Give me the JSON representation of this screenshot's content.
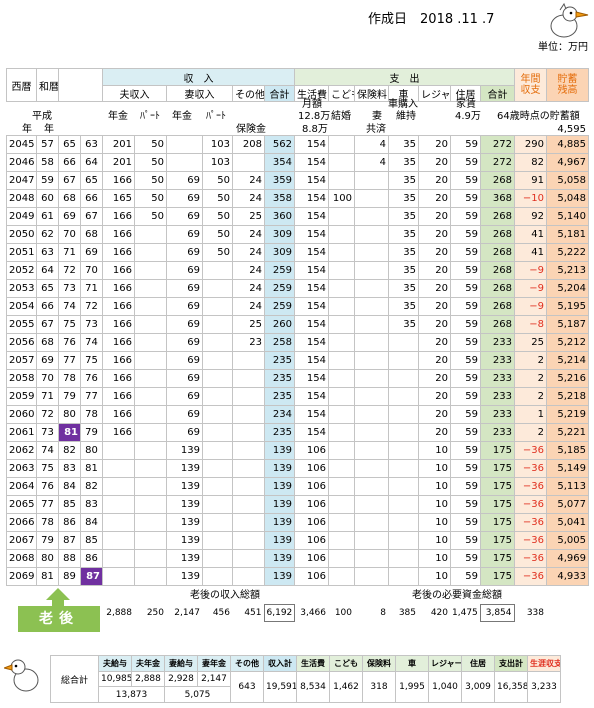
{
  "header": {
    "created_label": "作成日",
    "created_date": "2018 .11 .7",
    "unit": "単位：万円"
  },
  "table": {
    "head": {
      "western": "西暦",
      "japanese": "和暦",
      "income": "収　入",
      "husband_income": "夫収入",
      "wife_income": "妻収入",
      "other": "その他",
      "income_total": "合計",
      "expense": "支　出",
      "living": "生活費",
      "children": "こども",
      "insurance": "保険料",
      "car": "車",
      "leisure": "レジャー",
      "housing": "住居",
      "expense_total": "合計",
      "annual_balance": [
        "年間",
        "収支"
      ],
      "savings": [
        "貯蓄",
        "残高"
      ]
    },
    "notes": {
      "heisei": "平成",
      "year1": "年",
      "year2": "年",
      "pension1": "年金",
      "part1": "ﾊﾟｰﾄ",
      "pension2": "年金",
      "part2": "ﾊﾟｰﾄ",
      "insurance_payout": "保険金",
      "monthly": "月額",
      "living_h": "12.8万",
      "living_w": "8.8万",
      "marriage": "結婚",
      "wife": "妻",
      "mutual": "共済",
      "car_purchase": "車購入",
      "maintenance": "維持",
      "rent": "家賃",
      "rent_amount": "4.9万",
      "savings_at_64": "64歳時点の貯蓄額",
      "savings_at_64_value": "4,595"
    },
    "rows": [
      [
        2045,
        57,
        65,
        63,
        201,
        50,
        null,
        103,
        208,
        562,
        154,
        null,
        4,
        35,
        20,
        59,
        272,
        290,
        "4,885"
      ],
      [
        2046,
        58,
        66,
        64,
        201,
        50,
        null,
        103,
        null,
        354,
        154,
        null,
        4,
        35,
        20,
        59,
        272,
        82,
        "4,967"
      ],
      [
        2047,
        59,
        67,
        65,
        166,
        50,
        69,
        50,
        24,
        359,
        154,
        null,
        null,
        35,
        20,
        59,
        268,
        91,
        "5,058"
      ],
      [
        2048,
        60,
        68,
        66,
        165,
        50,
        69,
        50,
        24,
        358,
        154,
        100,
        null,
        35,
        20,
        59,
        368,
        "−10",
        "5,048"
      ],
      [
        2049,
        61,
        69,
        67,
        166,
        50,
        69,
        50,
        25,
        360,
        154,
        null,
        null,
        35,
        20,
        59,
        268,
        92,
        "5,140"
      ],
      [
        2050,
        62,
        70,
        68,
        166,
        null,
        69,
        50,
        24,
        309,
        154,
        null,
        null,
        35,
        20,
        59,
        268,
        41,
        "5,181"
      ],
      [
        2051,
        63,
        71,
        69,
        166,
        null,
        69,
        50,
        24,
        309,
        154,
        null,
        null,
        35,
        20,
        59,
        268,
        41,
        "5,222"
      ],
      [
        2052,
        64,
        72,
        70,
        166,
        null,
        69,
        null,
        24,
        259,
        154,
        null,
        null,
        35,
        20,
        59,
        268,
        "−9",
        "5,213"
      ],
      [
        2053,
        65,
        73,
        71,
        166,
        null,
        69,
        null,
        24,
        259,
        154,
        null,
        null,
        35,
        20,
        59,
        268,
        "−9",
        "5,204"
      ],
      [
        2054,
        66,
        74,
        72,
        166,
        null,
        69,
        null,
        24,
        259,
        154,
        null,
        null,
        35,
        20,
        59,
        268,
        "−9",
        "5,195"
      ],
      [
        2055,
        67,
        75,
        73,
        166,
        null,
        69,
        null,
        25,
        260,
        154,
        null,
        null,
        35,
        20,
        59,
        268,
        "−8",
        "5,187"
      ],
      [
        2056,
        68,
        76,
        74,
        166,
        null,
        69,
        null,
        23,
        258,
        154,
        null,
        null,
        null,
        20,
        59,
        233,
        25,
        "5,212"
      ],
      [
        2057,
        69,
        77,
        75,
        166,
        null,
        69,
        null,
        null,
        235,
        154,
        null,
        null,
        null,
        20,
        59,
        233,
        2,
        "5,214"
      ],
      [
        2058,
        70,
        78,
        76,
        166,
        null,
        69,
        null,
        null,
        235,
        154,
        null,
        null,
        null,
        20,
        59,
        233,
        2,
        "5,216"
      ],
      [
        2059,
        71,
        79,
        77,
        166,
        null,
        69,
        null,
        null,
        235,
        154,
        null,
        null,
        null,
        20,
        59,
        233,
        2,
        "5,218"
      ],
      [
        2060,
        72,
        80,
        78,
        166,
        null,
        69,
        null,
        null,
        234,
        154,
        null,
        null,
        null,
        20,
        59,
        233,
        1,
        "5,219"
      ],
      [
        2061,
        73,
        81,
        79,
        166,
        null,
        69,
        null,
        null,
        235,
        154,
        null,
        null,
        null,
        20,
        59,
        233,
        2,
        "5,221"
      ],
      [
        2062,
        74,
        82,
        80,
        null,
        null,
        139,
        null,
        null,
        139,
        106,
        null,
        null,
        null,
        10,
        59,
        175,
        "−36",
        "5,185"
      ],
      [
        2063,
        75,
        83,
        81,
        null,
        null,
        139,
        null,
        null,
        139,
        106,
        null,
        null,
        null,
        10,
        59,
        175,
        "−36",
        "5,149"
      ],
      [
        2064,
        76,
        84,
        82,
        null,
        null,
        139,
        null,
        null,
        139,
        106,
        null,
        null,
        null,
        10,
        59,
        175,
        "−36",
        "5,113"
      ],
      [
        2065,
        77,
        85,
        83,
        null,
        null,
        139,
        null,
        null,
        139,
        106,
        null,
        null,
        null,
        10,
        59,
        175,
        "−36",
        "5,077"
      ],
      [
        2066,
        78,
        86,
        84,
        null,
        null,
        139,
        null,
        null,
        139,
        106,
        null,
        null,
        null,
        10,
        59,
        175,
        "−36",
        "5,041"
      ],
      [
        2067,
        79,
        87,
        85,
        null,
        null,
        139,
        null,
        null,
        139,
        106,
        null,
        null,
        null,
        10,
        59,
        175,
        "−36",
        "5,005"
      ],
      [
        2068,
        80,
        88,
        86,
        null,
        null,
        139,
        null,
        null,
        139,
        106,
        null,
        null,
        null,
        10,
        59,
        175,
        "−36",
        "4,969"
      ],
      [
        2069,
        81,
        89,
        87,
        null,
        null,
        139,
        null,
        null,
        139,
        106,
        null,
        null,
        null,
        10,
        59,
        175,
        "−36",
        "4,933"
      ]
    ],
    "totals_labels": {
      "income": "老後の収入総額",
      "expense": "老後の必要資金総額"
    },
    "totals": [
      "2,888",
      250,
      "2,147",
      456,
      451,
      "6,192",
      "3,466",
      100,
      8,
      385,
      420,
      "1,475",
      "3,854",
      338
    ]
  },
  "retirement_label": "老後",
  "summary": {
    "label": "総合計",
    "headers": [
      "夫給与",
      "夫年金",
      "妻給与",
      "妻年金",
      "その他",
      "収入計",
      "生活費",
      "こども",
      "保険料",
      "車",
      "レジャー",
      "住居",
      "支出計",
      "生涯収支"
    ],
    "row1": [
      "10,985",
      "2,888",
      "2,928",
      "2,147"
    ],
    "row2": [
      "13,873",
      "5,075",
      643,
      "19,591",
      "8,534",
      "1,462",
      318,
      "1,995",
      "1,040",
      "3,009",
      "16,358",
      "3,233"
    ]
  }
}
